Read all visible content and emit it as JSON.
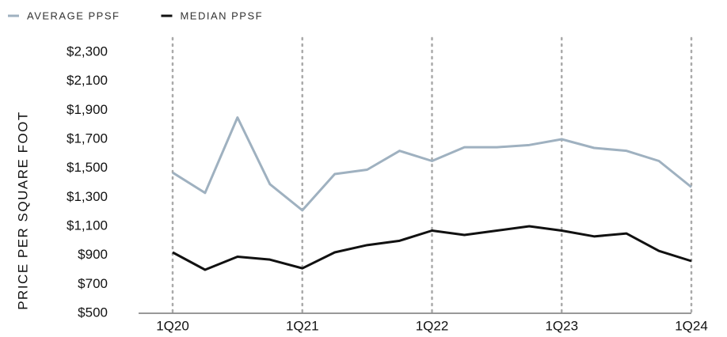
{
  "chart_data": {
    "type": "line",
    "y_label": "PRICE PER SQUARE FOOT",
    "categories": [
      "1Q20",
      null,
      null,
      null,
      "1Q21",
      null,
      null,
      null,
      "1Q22",
      null,
      null,
      null,
      "1Q23",
      null,
      null,
      null,
      "1Q24"
    ],
    "series": [
      {
        "name": "AVERAGE PPSF",
        "color": "#9fb1c0",
        "values": [
          1470,
          1330,
          1850,
          1390,
          1210,
          1460,
          1490,
          1620,
          1550,
          1645,
          1645,
          1660,
          1700,
          1640,
          1620,
          1550,
          1370
        ]
      },
      {
        "name": "MEDIAN PPSF",
        "color": "#111111",
        "values": [
          920,
          800,
          890,
          870,
          810,
          920,
          970,
          1000,
          1070,
          1040,
          1070,
          1100,
          1070,
          1030,
          1050,
          930,
          860
        ]
      }
    ],
    "ylim": [
      500,
      2300
    ],
    "yticks": [
      {
        "value": 500,
        "label": "$500"
      },
      {
        "value": 700,
        "label": "$700"
      },
      {
        "value": 900,
        "label": "$900"
      },
      {
        "value": 1100,
        "label": "$1,100"
      },
      {
        "value": 1300,
        "label": "$1,300"
      },
      {
        "value": 1500,
        "label": "$1,500"
      },
      {
        "value": 1700,
        "label": "$1,700"
      },
      {
        "value": 1900,
        "label": "$1,900"
      },
      {
        "value": 2100,
        "label": "$2,100"
      },
      {
        "value": 2300,
        "label": "$2,300"
      }
    ],
    "legend": "top-left",
    "grid": true
  }
}
